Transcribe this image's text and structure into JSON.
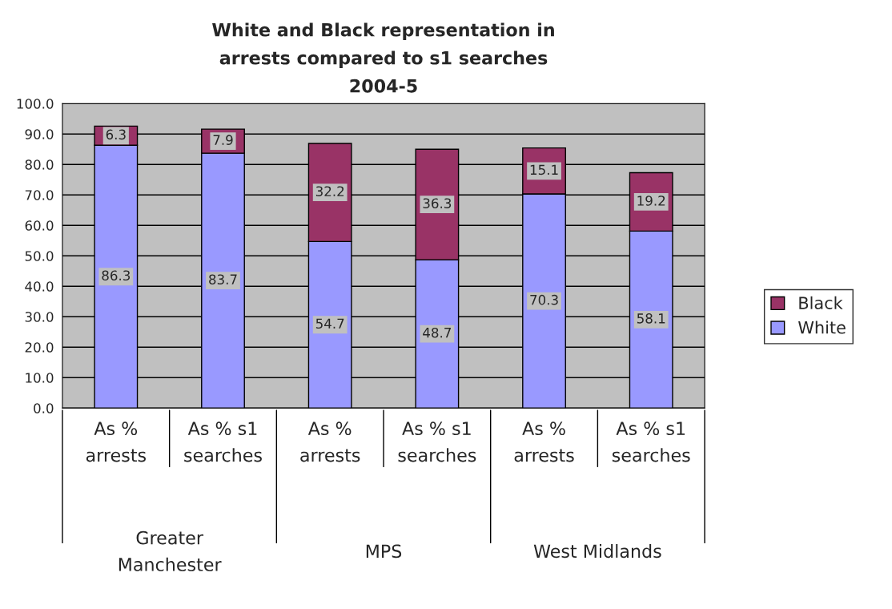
{
  "chart_data": {
    "type": "bar",
    "title": "White and Black representation in\narrests compared to s1 searches\n2004-5",
    "categories": [
      "As %\narrests",
      "As % s1\nsearches",
      "As %\narrests",
      "As % s1\nsearches",
      "As %\narrests",
      "As % s1\nsearches"
    ],
    "series": [
      {
        "name": "White",
        "color": "#9999ff",
        "values": [
          86.3,
          83.7,
          54.7,
          48.7,
          70.3,
          58.1
        ]
      },
      {
        "name": "Black",
        "color": "#993366",
        "values": [
          6.3,
          7.9,
          32.2,
          36.3,
          15.1,
          19.2
        ]
      }
    ],
    "stacked": true,
    "data_labels": true,
    "ylim": [
      0,
      100
    ],
    "yticks": [
      {
        "value": 0,
        "label": "0.0"
      },
      {
        "value": 10,
        "label": "10.0"
      },
      {
        "value": 20,
        "label": "20.0"
      },
      {
        "value": 30,
        "label": "30.0"
      },
      {
        "value": 40,
        "label": "40.0"
      },
      {
        "value": 50,
        "label": "50.0"
      },
      {
        "value": 60,
        "label": "60.0"
      },
      {
        "value": 70,
        "label": "70.0"
      },
      {
        "value": 80,
        "label": "80.0"
      },
      {
        "value": 90,
        "label": "90.0"
      },
      {
        "value": 100,
        "label": "100.0"
      }
    ],
    "grid": "y",
    "legend": "right",
    "annotations": [
      "Greater\nManchester",
      "MPS",
      "West Midlands"
    ]
  }
}
